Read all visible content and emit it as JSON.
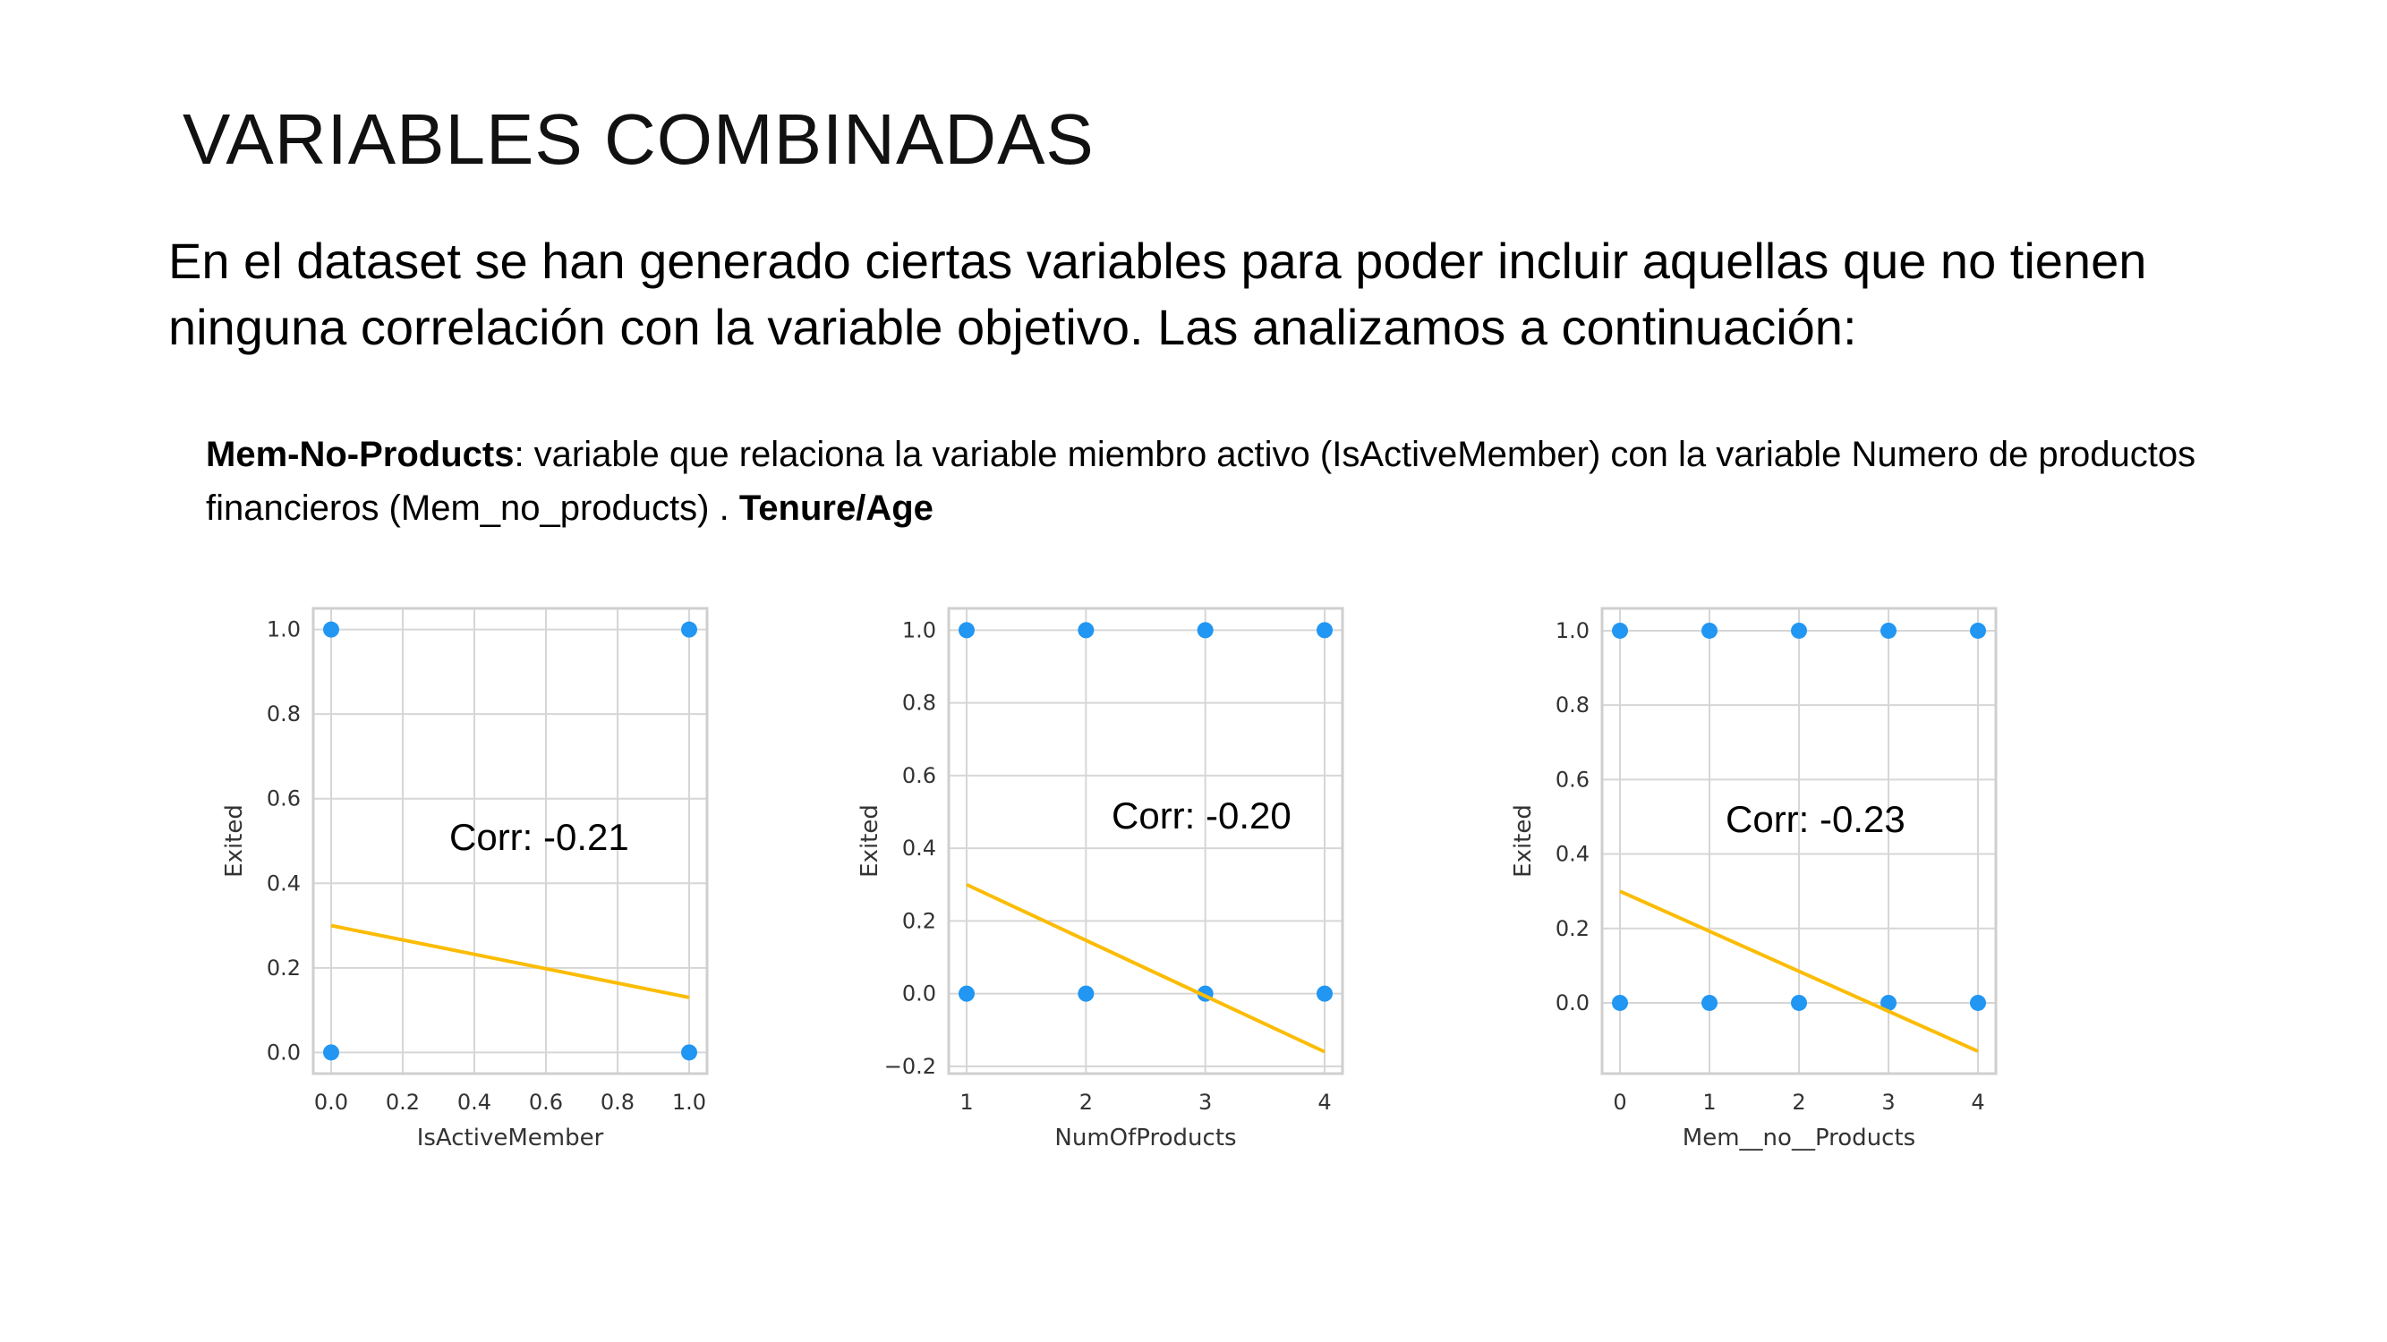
{
  "slide": {
    "title": "VARIABLES COMBINADAS",
    "intro": "En el dataset se han generado ciertas variables para poder incluir aquellas que no tienen ninguna correlación con la variable objetivo. Las analizamos a continuación:",
    "desc_bold": "Mem-No-Products",
    "desc_text": ": variable que relaciona la variable miembro activo (IsActiveMember) con la variable Numero de productos financieros (Mem_no_products) . ",
    "desc_bold2": "Tenure/Age"
  },
  "colors": {
    "points": "#2196f3",
    "fit": "#fbbc04",
    "grid": "#d6d6d6",
    "frame": "#cfcfcf"
  },
  "chart_data": [
    {
      "type": "scatter",
      "xlabel": "IsActiveMember",
      "ylabel": "Exited",
      "annotation": "Corr: -0.21",
      "xlim": [
        -0.05,
        1.05
      ],
      "ylim": [
        -0.05,
        1.05
      ],
      "xticks": [
        0.0,
        0.2,
        0.4,
        0.6,
        0.8,
        1.0
      ],
      "xtick_labels": [
        "0.0",
        "0.2",
        "0.4",
        "0.6",
        "0.8",
        "1.0"
      ],
      "yticks": [
        0.0,
        0.2,
        0.4,
        0.6,
        0.8,
        1.0
      ],
      "ytick_labels": [
        "0.0",
        "0.2",
        "0.4",
        "0.6",
        "0.8",
        "1.0"
      ],
      "points": [
        [
          0,
          1
        ],
        [
          1,
          1
        ],
        [
          0,
          0
        ],
        [
          1,
          0
        ]
      ],
      "fit_line": [
        [
          0,
          0.3
        ],
        [
          1,
          0.13
        ]
      ],
      "grid": true
    },
    {
      "type": "scatter",
      "xlabel": "NumOfProducts",
      "ylabel": "Exited",
      "annotation": "Corr: -0.20",
      "xlim": [
        0.85,
        4.15
      ],
      "ylim": [
        -0.22,
        1.06
      ],
      "xticks": [
        1,
        2,
        3,
        4
      ],
      "xtick_labels": [
        "1",
        "2",
        "3",
        "4"
      ],
      "yticks": [
        -0.2,
        0.0,
        0.2,
        0.4,
        0.6,
        0.8,
        1.0
      ],
      "ytick_labels": [
        "−0.2",
        "0.0",
        "0.2",
        "0.4",
        "0.6",
        "0.8",
        "1.0"
      ],
      "points": [
        [
          1,
          1
        ],
        [
          2,
          1
        ],
        [
          3,
          1
        ],
        [
          4,
          1
        ],
        [
          1,
          0
        ],
        [
          2,
          0
        ],
        [
          3,
          0
        ],
        [
          4,
          0
        ]
      ],
      "fit_line": [
        [
          1,
          0.3
        ],
        [
          4,
          -0.16
        ]
      ],
      "grid": true
    },
    {
      "type": "scatter",
      "xlabel": "Mem__no__Products",
      "ylabel": "Exited",
      "annotation": "Corr: -0.23",
      "xlim": [
        -0.2,
        4.2
      ],
      "ylim": [
        -0.19,
        1.06
      ],
      "xticks": [
        0,
        1,
        2,
        3,
        4
      ],
      "xtick_labels": [
        "0",
        "1",
        "2",
        "3",
        "4"
      ],
      "yticks": [
        0.0,
        0.2,
        0.4,
        0.6,
        0.8,
        1.0
      ],
      "ytick_labels": [
        "0.0",
        "0.2",
        "0.4",
        "0.6",
        "0.8",
        "1.0"
      ],
      "points": [
        [
          0,
          1
        ],
        [
          1,
          1
        ],
        [
          2,
          1
        ],
        [
          3,
          1
        ],
        [
          4,
          1
        ],
        [
          0,
          0
        ],
        [
          1,
          0
        ],
        [
          2,
          0
        ],
        [
          3,
          0
        ],
        [
          4,
          0
        ]
      ],
      "fit_line": [
        [
          0,
          0.3
        ],
        [
          4,
          -0.13
        ]
      ],
      "grid": true
    }
  ]
}
